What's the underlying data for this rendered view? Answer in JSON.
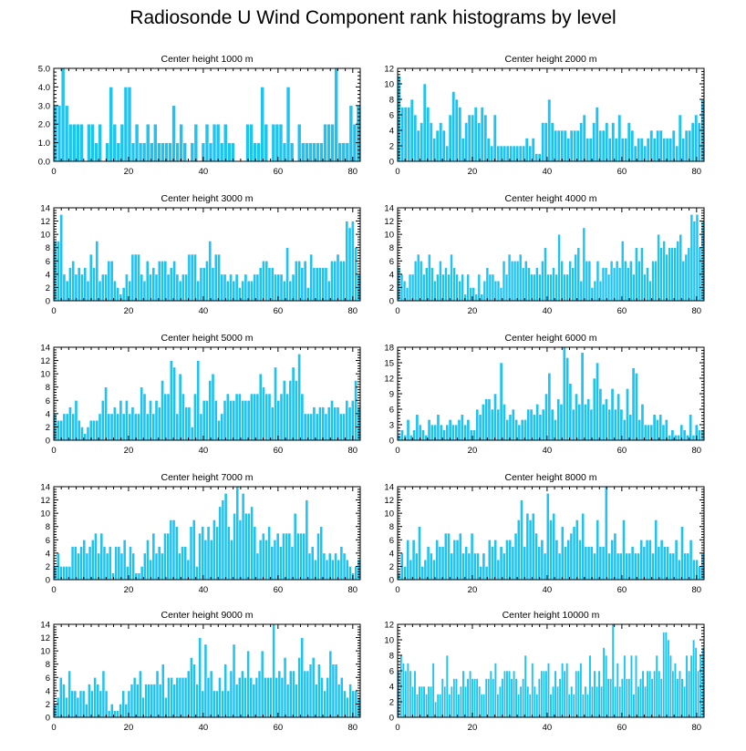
{
  "figure": {
    "title": "Radiosonde U Wind Component rank histograms by level"
  },
  "colors": {
    "bar": "#1ec3f0",
    "bar_edge": "#ffffff",
    "axis": "#000000",
    "background": "#ffffff"
  },
  "chart_data": [
    {
      "type": "bar",
      "title": "Center height 1000 m",
      "xlim": [
        0,
        82
      ],
      "xticks": [
        0,
        20,
        40,
        60,
        80
      ],
      "ylim": [
        0,
        5
      ],
      "yticks": [
        0,
        1,
        2,
        3,
        4,
        5
      ],
      "ytick_labels": [
        "0.0",
        "1.0",
        "2.0",
        "3.0",
        "4.0",
        "5.0"
      ],
      "values": [
        3,
        3,
        5,
        3,
        2,
        2,
        2,
        2,
        0,
        2,
        2,
        1,
        2,
        0,
        1,
        4,
        2,
        1,
        2,
        4,
        4,
        1,
        2,
        1,
        1,
        2,
        1,
        2,
        1,
        1,
        1,
        1,
        3,
        1,
        2,
        1,
        0,
        1,
        2,
        0,
        1,
        2,
        1,
        2,
        2,
        1,
        2,
        1,
        1,
        0,
        0,
        0,
        2,
        2,
        1,
        1,
        4,
        2,
        0,
        2,
        2,
        2,
        1,
        4,
        1,
        0,
        2,
        1,
        1,
        1,
        1,
        1,
        1,
        2,
        2,
        2,
        5,
        1,
        1,
        1,
        3,
        2,
        3
      ]
    },
    {
      "type": "bar",
      "title": "Center height 2000 m",
      "xlim": [
        0,
        82
      ],
      "xticks": [
        0,
        20,
        40,
        60,
        80
      ],
      "ylim": [
        0,
        12
      ],
      "yticks": [
        0,
        2,
        4,
        6,
        8,
        10,
        12
      ],
      "ytick_labels": [
        "0",
        "2",
        "4",
        "6",
        "8",
        "10",
        "12"
      ],
      "values": [
        11,
        7,
        7,
        7,
        8,
        6,
        4,
        5,
        10,
        7,
        5,
        3,
        4,
        5,
        4,
        2,
        6,
        9,
        8,
        7,
        3,
        5,
        6,
        6,
        7,
        5,
        7,
        6,
        3,
        2,
        6,
        2,
        2,
        2,
        2,
        2,
        2,
        2,
        2,
        2,
        3,
        2,
        3,
        1,
        1,
        5,
        5,
        8,
        5,
        4,
        4,
        4,
        4,
        3,
        4,
        4,
        4,
        5,
        6,
        3,
        3,
        5,
        7,
        4,
        4,
        5,
        3,
        5,
        3,
        6,
        3,
        3,
        5,
        4,
        2,
        3,
        3,
        2,
        3,
        4,
        3,
        4,
        4,
        3,
        3,
        3,
        4,
        2,
        6,
        3,
        4,
        4,
        5,
        6,
        5,
        8
      ]
    },
    {
      "type": "bar",
      "title": "Center height 3000 m",
      "xlim": [
        0,
        82
      ],
      "xticks": [
        0,
        20,
        40,
        60,
        80
      ],
      "ylim": [
        0,
        14
      ],
      "yticks": [
        0,
        2,
        4,
        6,
        8,
        10,
        12,
        14
      ],
      "ytick_labels": [
        "0",
        "2",
        "4",
        "6",
        "8",
        "10",
        "12",
        "14"
      ],
      "values": [
        9,
        9,
        13,
        4,
        3,
        5,
        6,
        4,
        5,
        4,
        5,
        3,
        7,
        5,
        9,
        3,
        4,
        4,
        6,
        6,
        3,
        2,
        1,
        2,
        4,
        3,
        7,
        7,
        7,
        4,
        3,
        6,
        4,
        5,
        4,
        6,
        6,
        6,
        4,
        5,
        6,
        4,
        3,
        4,
        4,
        7,
        7,
        7,
        3,
        5,
        5,
        6,
        9,
        5,
        7,
        7,
        4,
        4,
        3,
        4,
        3,
        4,
        2,
        3,
        4,
        3,
        3,
        4,
        4,
        5,
        6,
        6,
        5,
        5,
        4,
        4,
        4,
        3,
        8,
        3,
        4,
        6,
        6,
        5,
        6,
        2,
        7,
        5,
        5,
        5,
        5,
        5,
        3,
        6,
        6,
        7,
        6,
        6,
        12,
        11,
        12,
        8,
        4
      ]
    },
    {
      "type": "bar",
      "title": "Center height 4000 m",
      "xlim": [
        0,
        82
      ],
      "xticks": [
        0,
        20,
        40,
        60,
        80
      ],
      "ylim": [
        0,
        14
      ],
      "yticks": [
        0,
        2,
        4,
        6,
        8,
        10,
        12,
        14
      ],
      "ytick_labels": [
        "0",
        "2",
        "4",
        "6",
        "8",
        "10",
        "12",
        "14"
      ],
      "values": [
        5,
        4,
        3,
        2,
        4,
        4,
        6,
        7,
        6,
        4,
        5,
        7,
        5,
        3,
        4,
        6,
        4,
        5,
        4,
        7,
        5,
        4,
        3,
        4,
        1,
        4,
        2,
        2,
        1,
        4,
        1,
        3,
        5,
        4,
        4,
        3,
        3,
        2,
        6,
        4,
        7,
        6,
        6,
        6,
        7,
        5,
        6,
        5,
        4,
        4,
        5,
        4,
        6,
        8,
        4,
        4,
        5,
        4,
        10,
        6,
        4,
        4,
        6,
        5,
        7,
        8,
        3,
        11,
        6,
        6,
        2,
        3,
        6,
        3,
        5,
        5,
        4,
        6,
        5,
        6,
        5,
        9,
        6,
        5,
        6,
        4,
        8,
        6,
        8,
        4,
        5,
        3,
        6,
        6,
        10,
        8,
        9,
        7,
        8,
        8,
        8,
        9,
        10,
        6,
        7,
        8,
        13,
        12,
        13,
        8,
        12
      ]
    },
    {
      "type": "bar",
      "title": "Center height 5000 m",
      "xlim": [
        0,
        82
      ],
      "xticks": [
        0,
        20,
        40,
        60,
        80
      ],
      "ylim": [
        0,
        14
      ],
      "yticks": [
        0,
        2,
        4,
        6,
        8,
        10,
        12,
        14
      ],
      "ytick_labels": [
        "0",
        "2",
        "4",
        "6",
        "8",
        "10",
        "12",
        "14"
      ],
      "values": [
        4,
        3,
        3,
        4,
        4,
        5,
        4,
        6,
        3,
        2,
        1,
        2,
        3,
        3,
        3,
        4,
        6,
        8,
        4,
        4,
        5,
        4,
        6,
        4,
        6,
        4,
        5,
        4,
        4,
        8,
        7,
        4,
        6,
        4,
        6,
        5,
        9,
        7,
        7,
        12,
        11,
        4,
        10,
        7,
        5,
        5,
        2,
        7,
        12,
        4,
        6,
        6,
        9,
        10,
        6,
        3,
        4,
        6,
        7,
        6,
        6,
        7,
        7,
        6,
        6,
        6,
        7,
        7,
        7,
        10,
        8,
        7,
        7,
        5,
        11,
        6,
        7,
        9,
        7,
        9,
        11,
        9,
        13,
        7,
        4,
        4,
        4,
        5,
        4,
        5,
        5,
        4,
        5,
        6,
        5,
        5,
        4,
        4,
        6,
        5,
        6,
        9,
        5
      ]
    },
    {
      "type": "bar",
      "title": "Center height 6000 m",
      "xlim": [
        0,
        82
      ],
      "xticks": [
        0,
        20,
        40,
        60,
        80
      ],
      "ylim": [
        0,
        18
      ],
      "yticks": [
        0,
        3,
        6,
        9,
        12,
        15,
        18
      ],
      "ytick_labels": [
        "0",
        "3",
        "6",
        "9",
        "12",
        "15",
        "18"
      ],
      "values": [
        1,
        2,
        1,
        4,
        1,
        2,
        5,
        3,
        2,
        1,
        4,
        3,
        3,
        5,
        3,
        2,
        3,
        4,
        3,
        3,
        4,
        5,
        3,
        4,
        2,
        2,
        6,
        5,
        7,
        8,
        8,
        6,
        9,
        6,
        15,
        7,
        4,
        5,
        6,
        4,
        3,
        4,
        4,
        6,
        6,
        5,
        7,
        5,
        6,
        9,
        13,
        6,
        4,
        8,
        7,
        18,
        16,
        11,
        6,
        9,
        7,
        17,
        7,
        8,
        6,
        12,
        15,
        10,
        7,
        8,
        6,
        10,
        6,
        9,
        6,
        4,
        10,
        5,
        14,
        13,
        4,
        7,
        3,
        3,
        3,
        5,
        4,
        5,
        3,
        4,
        1,
        2,
        1,
        1,
        3,
        2,
        1,
        5,
        1,
        3,
        2,
        2
      ]
    },
    {
      "type": "bar",
      "title": "Center height 7000 m",
      "xlim": [
        0,
        82
      ],
      "xticks": [
        0,
        20,
        40,
        60,
        80
      ],
      "ylim": [
        0,
        14
      ],
      "yticks": [
        0,
        2,
        4,
        6,
        8,
        10,
        12,
        14
      ],
      "ytick_labels": [
        "0",
        "2",
        "4",
        "6",
        "8",
        "10",
        "12",
        "14"
      ],
      "values": [
        2,
        4,
        2,
        2,
        2,
        2,
        5,
        5,
        4,
        5,
        6,
        4,
        5,
        6,
        7,
        4,
        7,
        5,
        4,
        5,
        1,
        5,
        5,
        4,
        6,
        2,
        5,
        4,
        1,
        1,
        2,
        4,
        6,
        3,
        7,
        4,
        5,
        4,
        7,
        7,
        9,
        9,
        8,
        4,
        5,
        5,
        3,
        8,
        9,
        2,
        7,
        8,
        6,
        8,
        6,
        9,
        8,
        11,
        12,
        13,
        8,
        6,
        10,
        14,
        9,
        13,
        10,
        10,
        11,
        8,
        4,
        6,
        7,
        6,
        8,
        5,
        6,
        7,
        5,
        7,
        7,
        7,
        5,
        10,
        7,
        7,
        7,
        12,
        4,
        5,
        3,
        7,
        8,
        4,
        3,
        4,
        3,
        4,
        3,
        5,
        4,
        3,
        2,
        1,
        2,
        3
      ]
    },
    {
      "type": "bar",
      "title": "Center height 8000 m",
      "xlim": [
        0,
        82
      ],
      "xticks": [
        0,
        20,
        40,
        60,
        80
      ],
      "ylim": [
        0,
        14
      ],
      "yticks": [
        0,
        2,
        4,
        6,
        8,
        10,
        12,
        14
      ],
      "ytick_labels": [
        "0",
        "2",
        "4",
        "6",
        "8",
        "10",
        "12",
        "14"
      ],
      "values": [
        1,
        4,
        2,
        6,
        3,
        6,
        4,
        8,
        2,
        3,
        5,
        4,
        3,
        6,
        5,
        5,
        7,
        7,
        4,
        6,
        6,
        7,
        4,
        5,
        4,
        7,
        4,
        4,
        2,
        4,
        2,
        6,
        5,
        6,
        3,
        5,
        4,
        6,
        6,
        5,
        7,
        9,
        12,
        5,
        10,
        9,
        10,
        7,
        5,
        6,
        4,
        13,
        9,
        10,
        6,
        4,
        8,
        5,
        6,
        7,
        8,
        9,
        6,
        10,
        5,
        5,
        5,
        4,
        9,
        5,
        5,
        14,
        4,
        6,
        7,
        4,
        4,
        9,
        4,
        4,
        5,
        4,
        4,
        6,
        5,
        6,
        6,
        4,
        9,
        5,
        6,
        5,
        5,
        4,
        4,
        6,
        3,
        8,
        4,
        4,
        6,
        3,
        3,
        2,
        4
      ]
    },
    {
      "type": "bar",
      "title": "Center height 9000 m",
      "xlim": [
        0,
        82
      ],
      "xticks": [
        0,
        20,
        40,
        60,
        80
      ],
      "ylim": [
        0,
        14
      ],
      "yticks": [
        0,
        2,
        4,
        6,
        8,
        10,
        12,
        14
      ],
      "ytick_labels": [
        "0",
        "2",
        "4",
        "6",
        "8",
        "10",
        "12",
        "14"
      ],
      "values": [
        2,
        3,
        6,
        5,
        3,
        7,
        4,
        4,
        3,
        4,
        4,
        2,
        5,
        4,
        6,
        5,
        4,
        7,
        4,
        1,
        2,
        1,
        1,
        2,
        4,
        2,
        4,
        5,
        6,
        5,
        7,
        3,
        5,
        5,
        5,
        5,
        7,
        5,
        8,
        3,
        6,
        6,
        5,
        6,
        6,
        6,
        6,
        7,
        9,
        8,
        5,
        12,
        4,
        11,
        6,
        7,
        4,
        4,
        6,
        4,
        8,
        4,
        7,
        11,
        5,
        6,
        7,
        6,
        10,
        6,
        5,
        6,
        7,
        10,
        6,
        6,
        6,
        14,
        6,
        7,
        6,
        9,
        5,
        7,
        7,
        5,
        9,
        12,
        7,
        7,
        8,
        9,
        5,
        8,
        6,
        4,
        6,
        10,
        8,
        8,
        5,
        6,
        4,
        3,
        5,
        4,
        4,
        3
      ]
    },
    {
      "type": "bar",
      "title": "Center height 10000 m",
      "xlim": [
        0,
        82
      ],
      "xticks": [
        0,
        20,
        40,
        60,
        80
      ],
      "ylim": [
        0,
        12
      ],
      "yticks": [
        0,
        2,
        4,
        6,
        8,
        10,
        12
      ],
      "ytick_labels": [
        "0",
        "2",
        "4",
        "6",
        "8",
        "10",
        "12"
      ],
      "values": [
        6,
        8,
        7,
        6,
        7,
        6,
        4,
        6,
        3,
        4,
        4,
        4,
        3,
        4,
        4,
        7,
        2,
        3,
        3,
        5,
        4,
        8,
        3,
        4,
        5,
        5,
        3,
        4,
        6,
        4,
        5,
        6,
        5,
        5,
        5,
        4,
        3,
        3,
        5,
        5,
        6,
        5,
        7,
        3,
        4,
        5,
        6,
        6,
        6,
        5,
        6,
        5,
        3,
        4,
        5,
        8,
        4,
        3,
        7,
        4,
        3,
        5,
        6,
        6,
        6,
        7,
        3,
        4,
        6,
        4,
        5,
        7,
        6,
        7,
        3,
        4,
        3,
        6,
        6,
        7,
        3,
        4,
        3,
        8,
        4,
        6,
        4,
        6,
        4,
        9,
        8,
        5,
        5,
        12,
        4,
        7,
        4,
        5,
        8,
        5,
        5,
        8,
        3,
        8,
        4,
        5,
        6,
        4,
        6,
        6,
        5,
        6,
        8,
        6,
        5,
        11,
        11,
        10,
        8,
        6,
        7,
        5,
        6,
        5,
        4,
        8,
        6,
        8,
        10,
        9,
        6,
        8,
        9
      ]
    }
  ]
}
